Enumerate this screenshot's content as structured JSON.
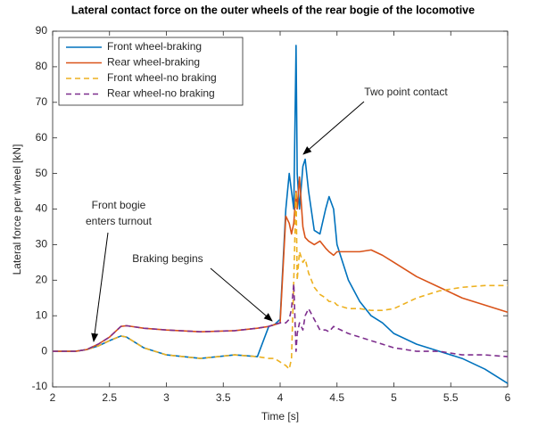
{
  "chart_data": {
    "type": "line",
    "title": "Lateral contact force on the outer wheels of the rear bogie of the locomotive",
    "x_label": "Time [s]",
    "y_label": "Lateral force per wheel [kN]",
    "x": [
      2,
      2.2,
      2.3,
      2.4,
      2.5,
      2.6,
      2.65,
      2.8,
      3.0,
      3.3,
      3.6,
      3.8,
      3.9,
      3.95,
      4.0,
      4.05,
      4.08,
      4.1,
      4.12,
      4.14,
      4.15,
      4.17,
      4.2,
      4.22,
      4.25,
      4.3,
      4.35,
      4.4,
      4.43,
      4.47,
      4.5,
      4.6,
      4.7,
      4.8,
      4.9,
      5.0,
      5.2,
      5.4,
      5.6,
      5.8,
      6.0
    ],
    "series": [
      {
        "name": "Front wheel-braking",
        "color": "#0072BD",
        "line_style": "solid",
        "values": [
          0,
          0,
          0.5,
          1.5,
          3,
          4.3,
          4,
          1,
          -1,
          -2,
          -1,
          -1.5,
          7,
          7.5,
          9,
          40,
          50,
          45,
          40,
          86,
          50,
          40,
          52,
          54,
          45,
          34,
          33,
          40,
          43.5,
          40,
          30,
          20,
          14,
          10,
          8,
          5,
          2,
          0,
          -2,
          -5,
          -9
        ]
      },
      {
        "name": "Rear wheel-braking",
        "color": "#D95319",
        "line_style": "solid",
        "values": [
          0,
          0,
          0.5,
          2,
          4,
          7,
          7.2,
          6.5,
          6,
          5.5,
          5.8,
          6.5,
          7,
          7.5,
          8,
          38,
          36,
          33,
          36,
          45,
          40,
          49,
          35,
          32,
          31,
          30,
          31,
          29,
          28,
          27,
          28,
          28,
          28,
          28.5,
          27,
          25,
          21,
          18,
          15,
          13,
          11
        ]
      },
      {
        "name": "Front wheel-no braking",
        "color": "#EDB120",
        "line_style": "dashed",
        "values": [
          0,
          0,
          0.5,
          1.5,
          3,
          4.3,
          4,
          1,
          -1,
          -2,
          -1,
          -1.5,
          -2,
          -2,
          -3,
          -4,
          -5,
          -2,
          20,
          45,
          20,
          28,
          25,
          26,
          22,
          18,
          16,
          15,
          14,
          14,
          13,
          12,
          12,
          11.5,
          11.5,
          12,
          15,
          17,
          18,
          18.5,
          18.5
        ]
      },
      {
        "name": "Rear wheel-no braking",
        "color": "#7E2F8E",
        "line_style": "dashed",
        "values": [
          0,
          0,
          0.5,
          2,
          4,
          7,
          7.2,
          6.5,
          6,
          5.5,
          5.8,
          6.5,
          7,
          7.5,
          8,
          8,
          9,
          12,
          19,
          0,
          5,
          8,
          6,
          10,
          12,
          9,
          6,
          6,
          5.5,
          7,
          6.5,
          5,
          4,
          3,
          2,
          1,
          0,
          0,
          -1,
          -1,
          -1.5
        ]
      }
    ],
    "xlim": [
      2,
      6
    ],
    "xticks": [
      2,
      2.5,
      3,
      3.5,
      4,
      4.5,
      5,
      5.5,
      6
    ],
    "ylim": [
      -10,
      90
    ],
    "yticks": [
      -10,
      0,
      10,
      20,
      30,
      40,
      50,
      60,
      70,
      80,
      90
    ],
    "grid": false,
    "legend": "upper-left",
    "annotations": [
      {
        "text": "Two point contact"
      },
      {
        "text": [
          "Front bogie",
          "enters turnout"
        ]
      },
      {
        "text": "Braking begins"
      }
    ]
  }
}
